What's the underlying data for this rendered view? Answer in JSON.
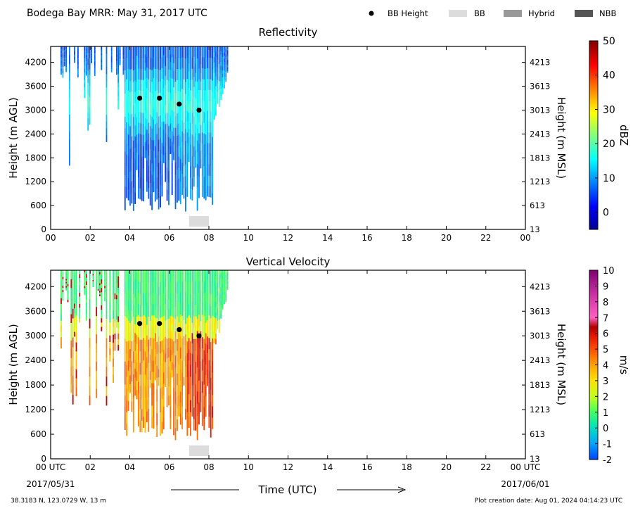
{
  "header": {
    "title": "Bodega Bay MRR:  May 31, 2017 UTC",
    "legend": [
      {
        "label": "BB Height",
        "marker": "dot",
        "color": "#000000"
      },
      {
        "label": "BB",
        "marker": "box",
        "color": "#dcdcdc"
      },
      {
        "label": "Hybrid",
        "marker": "box",
        "color": "#999999"
      },
      {
        "label": "NBB",
        "marker": "box",
        "color": "#555555"
      }
    ]
  },
  "footer": {
    "location": "38.3183 N, 123.0729 W, 13 m",
    "creation": "Plot creation date: Aug 01, 2024 04:14:23 UTC",
    "xlabel": "Time (UTC)",
    "start_date": "2017/05/31",
    "end_date": "2017/06/01"
  },
  "chart_data": [
    {
      "type": "heatmap",
      "title": "Reflectivity",
      "xlabel": "",
      "ylabel": "Height (m AGL)",
      "ylabel_right": "Height (m MSL)",
      "xlim": [
        0,
        24
      ],
      "ylim": [
        0,
        4600
      ],
      "xtick_labels": [
        "00",
        "02",
        "04",
        "06",
        "08",
        "10",
        "12",
        "14",
        "16",
        "18",
        "20",
        "22",
        "00"
      ],
      "ytick_values": [
        0,
        600,
        1200,
        1800,
        2400,
        3000,
        3600,
        4200
      ],
      "ytick_labels": [
        "0",
        "600",
        "1200",
        "1800",
        "2400",
        "3000",
        "3600",
        "4200"
      ],
      "ytick_labels_right": [
        "13",
        "613",
        "1213",
        "1813",
        "2413",
        "3013",
        "3613",
        "4213"
      ],
      "colorbar": {
        "label": "dBZ",
        "min": -5,
        "max": 50,
        "ticks": [
          0,
          10,
          20,
          30,
          40,
          50
        ],
        "colormap": "jet"
      },
      "data_extent_hours": [
        0.5,
        9.0
      ],
      "bb_height": {
        "x": [
          4.5,
          5.5,
          6.5,
          7.5
        ],
        "y": [
          3300,
          3300,
          3150,
          3000
        ]
      },
      "bb_bar": {
        "x": [
          7.0,
          8.0
        ]
      }
    },
    {
      "type": "heatmap",
      "title": "Vertical Velocity",
      "xlabel": "Time (UTC)",
      "ylabel": "Height (m AGL)",
      "ylabel_right": "Height (m MSL)",
      "xlim": [
        0,
        24
      ],
      "ylim": [
        0,
        4600
      ],
      "xtick_labels": [
        "00 UTC",
        "02",
        "04",
        "06",
        "08",
        "10",
        "12",
        "14",
        "16",
        "18",
        "20",
        "22",
        "00 UTC"
      ],
      "ytick_values": [
        0,
        600,
        1200,
        1800,
        2400,
        3000,
        3600,
        4200
      ],
      "ytick_labels": [
        "0",
        "600",
        "1200",
        "1800",
        "2400",
        "3000",
        "3600",
        "4200"
      ],
      "ytick_labels_right": [
        "13",
        "613",
        "1213",
        "1813",
        "2413",
        "3013",
        "3613",
        "4213"
      ],
      "colorbar": {
        "label": "m/s",
        "min": -2,
        "max": 10,
        "ticks": [
          -2,
          -1,
          0,
          1,
          2,
          3,
          4,
          5,
          6,
          7,
          8,
          9,
          10
        ],
        "colormap": "velocity"
      },
      "data_extent_hours": [
        0.5,
        9.0
      ],
      "bb_height": {
        "x": [
          4.5,
          5.5,
          6.5,
          7.5
        ],
        "y": [
          3300,
          3300,
          3150,
          3000
        ]
      },
      "bb_bar": {
        "x": [
          7.0,
          8.0
        ]
      }
    }
  ]
}
